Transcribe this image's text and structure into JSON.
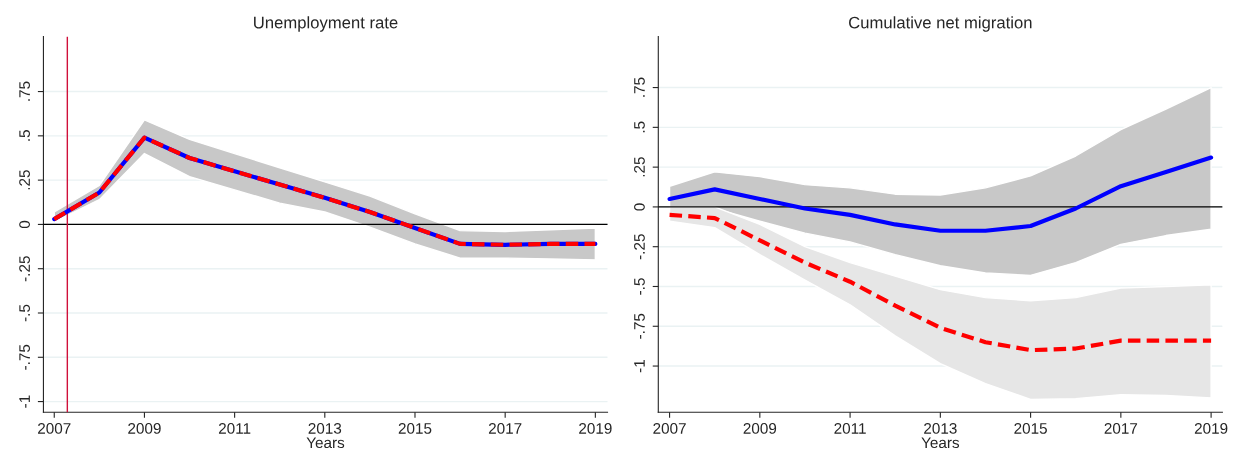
{
  "chart_data": [
    {
      "type": "line",
      "title": "Unemployment rate",
      "xlabel": "Years",
      "x": [
        2007,
        2008,
        2009,
        2010,
        2011,
        2012,
        2013,
        2014,
        2015,
        2016,
        2017,
        2018,
        2019
      ],
      "series": [
        {
          "color": "#0000ff",
          "line_style": "solid",
          "values": [
            0.03,
            0.18,
            0.49,
            0.375,
            0.3,
            0.225,
            0.15,
            0.07,
            -0.02,
            -0.11,
            -0.115,
            -0.11,
            -0.11
          ],
          "lower": [
            0.015,
            0.14,
            0.4,
            0.27,
            0.195,
            0.12,
            0.07,
            -0.015,
            -0.11,
            -0.19,
            -0.19,
            -0.195,
            -0.2
          ],
          "upper": [
            0.07,
            0.22,
            0.59,
            0.48,
            0.4,
            0.32,
            0.24,
            0.16,
            0.06,
            -0.035,
            -0.04,
            -0.03,
            -0.02
          ]
        },
        {
          "color": "#ff0000",
          "line_style": "dashed",
          "values": [
            0.03,
            0.18,
            0.49,
            0.375,
            0.3,
            0.225,
            0.15,
            0.07,
            -0.02,
            -0.11,
            -0.115,
            -0.11,
            -0.11
          ]
        }
      ],
      "xlim": [
        2006.76,
        2019.27
      ],
      "xticks": [
        2007,
        2009,
        2011,
        2013,
        2015,
        2017,
        2019
      ],
      "ylim": [
        -1.06,
        1.06
      ],
      "yticks": [
        {
          "value": -1,
          "label": "-1"
        },
        {
          "value": -0.75,
          "label": "-.75"
        },
        {
          "value": -0.5,
          "label": "-.5"
        },
        {
          "value": -0.25,
          "label": "-.25"
        },
        0,
        {
          "value": 0.25,
          "label": ".25"
        },
        {
          "value": 0.5,
          "label": ".5"
        },
        {
          "value": 0.75,
          "label": ".75"
        }
      ],
      "grid": "y",
      "ref_lines": [
        {
          "axis": "y",
          "value": 0,
          "color": "#000000"
        },
        {
          "axis": "x",
          "value": 2007.29,
          "color": "#d0103a"
        }
      ]
    },
    {
      "type": "line",
      "title": "Cumulative net migration",
      "xlabel": "Years",
      "x": [
        2007,
        2008,
        2009,
        2010,
        2011,
        2012,
        2013,
        2014,
        2015,
        2016,
        2017,
        2018,
        2019
      ],
      "series": [
        {
          "color": "#0000ff",
          "line_style": "solid",
          "values": [
            0.05,
            0.11,
            0.05,
            -0.01,
            -0.05,
            -0.11,
            -0.15,
            -0.15,
            -0.12,
            -0.01,
            0.13,
            0.22,
            0.31
          ],
          "lower": [
            -0.01,
            -0.01,
            -0.09,
            -0.165,
            -0.22,
            -0.3,
            -0.37,
            -0.415,
            -0.43,
            -0.35,
            -0.235,
            -0.18,
            -0.14
          ],
          "upper": [
            0.13,
            0.22,
            0.19,
            0.14,
            0.12,
            0.08,
            0.075,
            0.12,
            0.195,
            0.32,
            0.485,
            0.615,
            0.75
          ]
        },
        {
          "color": "#ff0000",
          "line_style": "dashed",
          "values": [
            -0.05,
            -0.07,
            -0.21,
            -0.35,
            -0.47,
            -0.62,
            -0.76,
            -0.85,
            -0.9,
            -0.89,
            -0.84,
            -0.84,
            -0.84
          ],
          "lower": [
            -0.09,
            -0.13,
            -0.3,
            -0.46,
            -0.615,
            -0.81,
            -0.985,
            -1.11,
            -1.21,
            -1.205,
            -1.18,
            -1.185,
            -1.2
          ],
          "upper": [
            0.0,
            0.0,
            -0.11,
            -0.25,
            -0.35,
            -0.435,
            -0.52,
            -0.57,
            -0.59,
            -0.57,
            -0.51,
            -0.5,
            -0.49
          ]
        }
      ],
      "xlim": [
        2006.75,
        2019.25
      ],
      "xticks": [
        2007,
        2009,
        2011,
        2013,
        2015,
        2017,
        2019
      ],
      "ylim": [
        -1.29,
        1.07
      ],
      "yticks": [
        {
          "value": -1,
          "label": "-1"
        },
        {
          "value": -0.75,
          "label": "-.75"
        },
        {
          "value": -0.5,
          "label": "-.5"
        },
        {
          "value": -0.25,
          "label": "-.25"
        },
        0,
        {
          "value": 0.25,
          "label": ".25"
        },
        {
          "value": 0.5,
          "label": ".5"
        },
        {
          "value": 0.75,
          "label": ".75"
        }
      ],
      "grid": "y",
      "ref_lines": [
        {
          "axis": "y",
          "value": 0,
          "color": "#000000"
        }
      ]
    }
  ]
}
